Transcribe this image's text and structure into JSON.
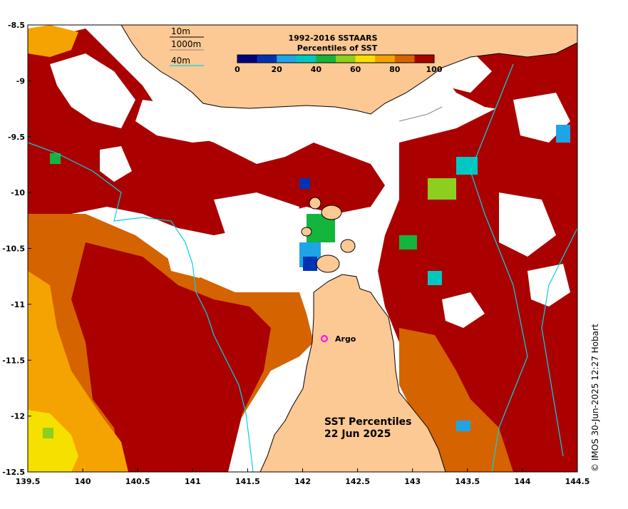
{
  "map": {
    "lon_range": [
      139.5,
      144.5
    ],
    "lat_range": [
      -12.5,
      -8.5
    ],
    "x_ticks": [
      "139.5",
      "140",
      "140.5",
      "141",
      "141.5",
      "142",
      "142.5",
      "143",
      "143.5",
      "144",
      "144.5"
    ],
    "y_ticks": [
      "-8.5",
      "-9",
      "-9.5",
      "-10",
      "-10.5",
      "-11",
      "-11.5",
      "-12",
      "-12.5"
    ],
    "land_color": "#fcc894",
    "no_data_color": "#ffffff"
  },
  "contour_legend": {
    "items": [
      {
        "label": "10m",
        "color": "#000000"
      },
      {
        "label": "1000m",
        "color": "#888888"
      },
      {
        "label": "40m",
        "color": "#00d5e6"
      }
    ]
  },
  "colorbar": {
    "title_line1": "1992-2016 SSTAARS",
    "title_line2": "Percentiles of SST",
    "tick_labels": [
      "0",
      "20",
      "40",
      "60",
      "80",
      "100"
    ],
    "colors": [
      "#000080",
      "#0033b3",
      "#1fa4e6",
      "#00c8c0",
      "#13b53c",
      "#8ccf1e",
      "#f5e000",
      "#f5a300",
      "#d56300",
      "#aa0000"
    ]
  },
  "annotations": {
    "argo_label": "Argo",
    "argo_marker_color": "#ff00ff",
    "title_line1": "SST Percentiles",
    "title_line2": "22 Jun 2025"
  },
  "copyright": "© IMOS 30-Jun-2025 12:27 Hobart"
}
